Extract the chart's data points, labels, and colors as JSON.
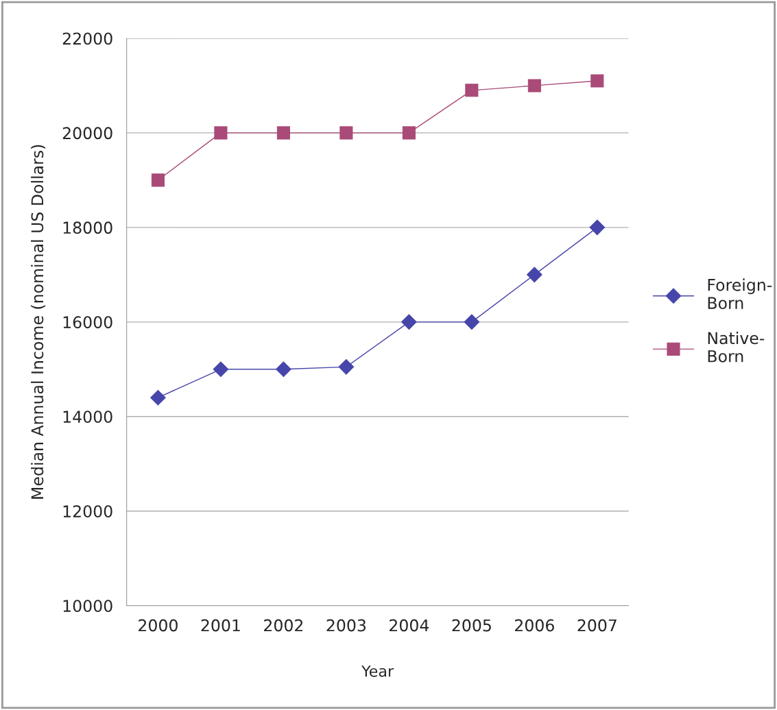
{
  "chart_data": {
    "type": "line",
    "xlabel": "Year",
    "ylabel": "Median Annual Income (nominal US Dollars)",
    "categories": [
      "2000",
      "2001",
      "2002",
      "2003",
      "2004",
      "2005",
      "2006",
      "2007"
    ],
    "series": [
      {
        "name": "Foreign-Born",
        "color": "#4646aa",
        "marker": "diamond",
        "values": [
          14400,
          15000,
          15000,
          15050,
          16000,
          16000,
          17000,
          18000
        ]
      },
      {
        "name": "Native-Born",
        "color": "#a94a78",
        "marker": "square",
        "values": [
          19000,
          20000,
          20000,
          20000,
          20000,
          20900,
          21000,
          21100
        ]
      }
    ],
    "ylim": [
      10000,
      22000
    ],
    "yticks": [
      10000,
      12000,
      14000,
      16000,
      18000,
      20000,
      22000
    ],
    "grid": "y",
    "legend": "right",
    "line_style": "solid"
  }
}
